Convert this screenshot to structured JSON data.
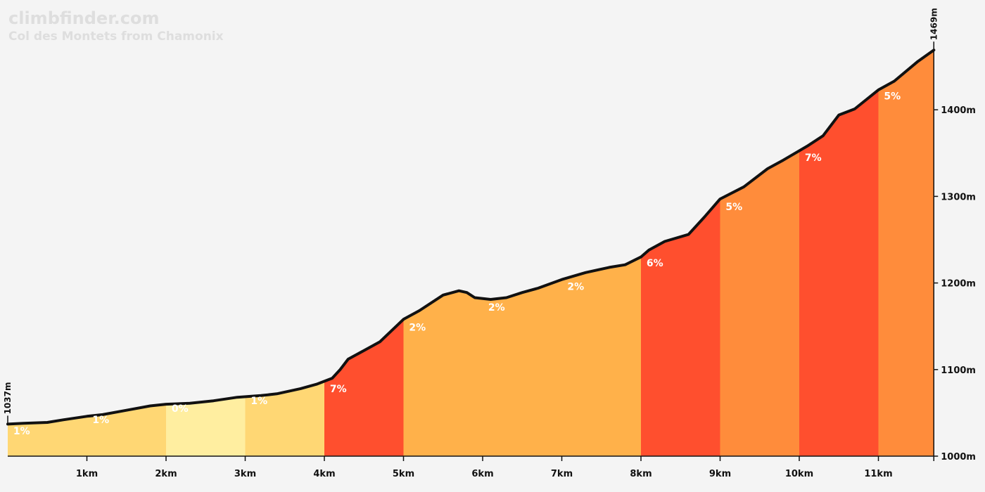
{
  "header": {
    "site": "climbfinder.com",
    "climb": "Col des Montets from Chamonix"
  },
  "chart_data": {
    "type": "area",
    "xlabel": "",
    "ylabel": "",
    "xlim": [
      0,
      11.7
    ],
    "ylim": [
      1000,
      1469
    ],
    "x_ticks": [
      {
        "value": 1,
        "label": "1km"
      },
      {
        "value": 2,
        "label": "2km"
      },
      {
        "value": 3,
        "label": "3km"
      },
      {
        "value": 4,
        "label": "4km"
      },
      {
        "value": 5,
        "label": "5km"
      },
      {
        "value": 6,
        "label": "6km"
      },
      {
        "value": 7,
        "label": "7km"
      },
      {
        "value": 8,
        "label": "8km"
      },
      {
        "value": 9,
        "label": "9km"
      },
      {
        "value": 10,
        "label": "10km"
      },
      {
        "value": 11,
        "label": "11km"
      }
    ],
    "y_ticks": [
      {
        "value": 1000,
        "label": "1000m"
      },
      {
        "value": 1100,
        "label": "1100m"
      },
      {
        "value": 1200,
        "label": "1200m"
      },
      {
        "value": 1300,
        "label": "1300m"
      },
      {
        "value": 1400,
        "label": "1400m"
      }
    ],
    "start_annotation": {
      "value": 1037,
      "label": "1037m"
    },
    "end_annotation": {
      "value": 1469,
      "label": "1469m"
    },
    "segments": [
      {
        "start": 0,
        "end": 1,
        "grade": "1%",
        "color": "#ffd774"
      },
      {
        "start": 1,
        "end": 2,
        "grade": "1%",
        "color": "#ffd774"
      },
      {
        "start": 2,
        "end": 3,
        "grade": "0%",
        "color": "#ffeea0"
      },
      {
        "start": 3,
        "end": 4,
        "grade": "1%",
        "color": "#ffd774"
      },
      {
        "start": 4,
        "end": 5,
        "grade": "7%",
        "color": "#ff4f2e"
      },
      {
        "start": 5,
        "end": 8,
        "grade": "2%",
        "color": "#ffb14a"
      },
      {
        "start": 8,
        "end": 9,
        "grade": "6%",
        "color": "#ff4f2e"
      },
      {
        "start": 9,
        "end": 10,
        "grade": "5%",
        "color": "#ff8c3b"
      },
      {
        "start": 10,
        "end": 11,
        "grade": "7%",
        "color": "#ff4f2e"
      },
      {
        "start": 11,
        "end": 11.7,
        "grade": "5%",
        "color": "#ff8c3b"
      }
    ],
    "grade_labels": [
      {
        "x": 0.07,
        "elev": 1025,
        "text": "1%"
      },
      {
        "x": 1.07,
        "elev": 1038,
        "text": "1%"
      },
      {
        "x": 2.07,
        "elev": 1051,
        "text": "0%"
      },
      {
        "x": 3.07,
        "elev": 1060,
        "text": "1%"
      },
      {
        "x": 4.07,
        "elev": 1074,
        "text": "7%"
      },
      {
        "x": 5.07,
        "elev": 1145,
        "text": "2%"
      },
      {
        "x": 6.07,
        "elev": 1168,
        "text": "2%"
      },
      {
        "x": 7.07,
        "elev": 1192,
        "text": "2%"
      },
      {
        "x": 8.07,
        "elev": 1219,
        "text": "6%"
      },
      {
        "x": 9.07,
        "elev": 1284,
        "text": "5%"
      },
      {
        "x": 10.07,
        "elev": 1341,
        "text": "7%"
      },
      {
        "x": 11.07,
        "elev": 1412,
        "text": "5%"
      }
    ],
    "profile": [
      [
        0,
        1037
      ],
      [
        0.2,
        1038
      ],
      [
        0.5,
        1039
      ],
      [
        0.7,
        1042
      ],
      [
        1.0,
        1046
      ],
      [
        1.2,
        1048
      ],
      [
        1.5,
        1053
      ],
      [
        1.8,
        1058
      ],
      [
        2.0,
        1060
      ],
      [
        2.3,
        1061
      ],
      [
        2.6,
        1064
      ],
      [
        2.9,
        1068
      ],
      [
        3.2,
        1070
      ],
      [
        3.4,
        1072
      ],
      [
        3.7,
        1078
      ],
      [
        3.9,
        1083
      ],
      [
        4.1,
        1090
      ],
      [
        4.2,
        1100
      ],
      [
        4.3,
        1112
      ],
      [
        4.5,
        1122
      ],
      [
        4.7,
        1132
      ],
      [
        5.0,
        1158
      ],
      [
        5.2,
        1168
      ],
      [
        5.5,
        1186
      ],
      [
        5.7,
        1191
      ],
      [
        5.8,
        1189
      ],
      [
        5.9,
        1183
      ],
      [
        6.1,
        1181
      ],
      [
        6.3,
        1183
      ],
      [
        6.5,
        1189
      ],
      [
        6.7,
        1194
      ],
      [
        7.0,
        1204
      ],
      [
        7.3,
        1212
      ],
      [
        7.6,
        1218
      ],
      [
        7.8,
        1221
      ],
      [
        8.0,
        1230
      ],
      [
        8.1,
        1238
      ],
      [
        8.3,
        1248
      ],
      [
        8.6,
        1256
      ],
      [
        8.8,
        1276
      ],
      [
        9.0,
        1297
      ],
      [
        9.3,
        1311
      ],
      [
        9.6,
        1332
      ],
      [
        9.8,
        1342
      ],
      [
        10.1,
        1358
      ],
      [
        10.3,
        1370
      ],
      [
        10.5,
        1394
      ],
      [
        10.7,
        1401
      ],
      [
        11.0,
        1423
      ],
      [
        11.2,
        1433
      ],
      [
        11.5,
        1456
      ],
      [
        11.7,
        1469
      ]
    ]
  }
}
